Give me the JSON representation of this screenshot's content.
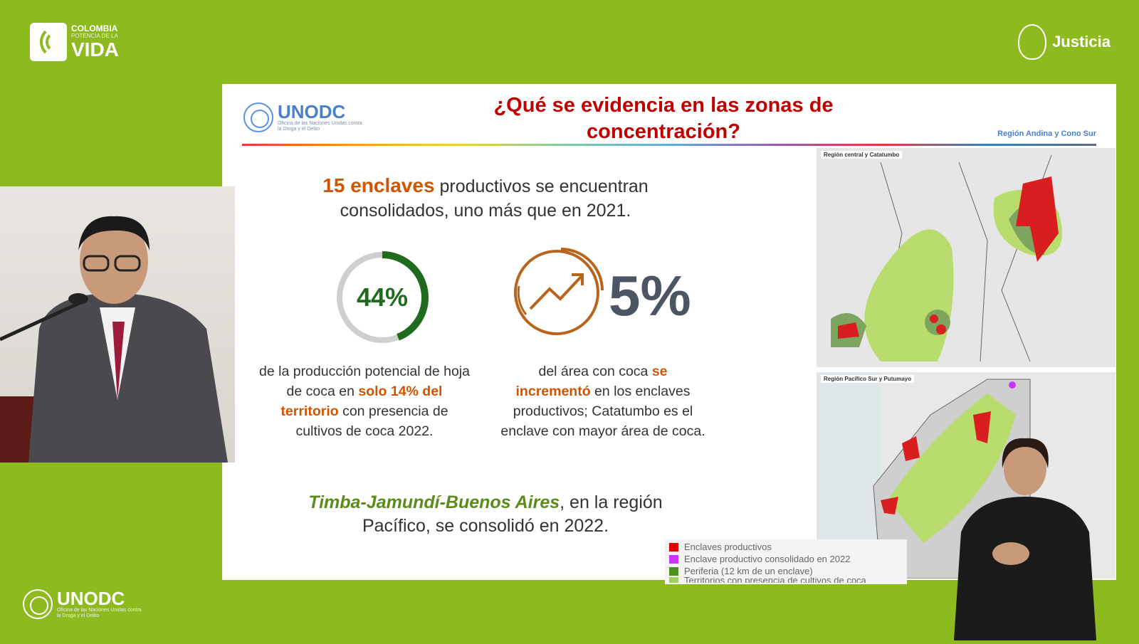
{
  "header": {
    "left_logo": {
      "line1": "COLOMBIA",
      "line2": "POTENCIA DE LA",
      "line3": "VIDA"
    },
    "right_logo": {
      "label": "Justicia"
    }
  },
  "slide": {
    "logo": {
      "name": "UNODC",
      "subtitle": "Oficina de las Naciones Unidas contra la Droga y el Delito"
    },
    "title": "¿Qué se evidencia en las zonas de concentración?",
    "region_label": "Región Andina y Cono Sur",
    "headline": {
      "highlight": "15 enclaves",
      "rest": " productivos se encuentran consolidados, uno más que en 2021."
    },
    "stat1": {
      "value": "44%",
      "fraction": 0.44,
      "color": "#1e6b1e",
      "text_a": "de la producción potencial de hoja de coca en ",
      "text_highlight": "solo 14% del territorio",
      "text_b": " con presencia de cultivos de coca 2022."
    },
    "stat2": {
      "value": "5%",
      "icon": "trend-up-icon",
      "color": "#b8651b",
      "text_a": "del área con coca ",
      "text_highlight": "se incrementó",
      "text_b": " en los enclaves productivos; Catatumbo es el enclave con mayor área de coca."
    },
    "bottom": {
      "highlight": "Timba-Jamundí-Buenos Aires",
      "rest": ", en la región Pacífico, se consolidó en 2022."
    },
    "maps": [
      {
        "label": "Región central y Catatumbo"
      },
      {
        "label": "Región Pacífico Sur y Putumayo"
      }
    ],
    "legend": [
      {
        "label": "Enclaves productivos",
        "color": "#e00000"
      },
      {
        "label": "Enclave productivo consolidado en 2022",
        "color": "#cc33ff"
      },
      {
        "label": "Periferia (12 km de un enclave)",
        "color": "#4f8f1f"
      },
      {
        "label": "Territorios con presencia de cultivos de coca",
        "color": "#9fd05a"
      }
    ],
    "colors": {
      "title": "#c00000",
      "accent": "#d35400",
      "green": "#5b8c1a"
    }
  },
  "footer": {
    "logo": {
      "name": "UNODC",
      "subtitle": "Oficina de las Naciones Unidas contra la Droga y el Delito"
    }
  }
}
